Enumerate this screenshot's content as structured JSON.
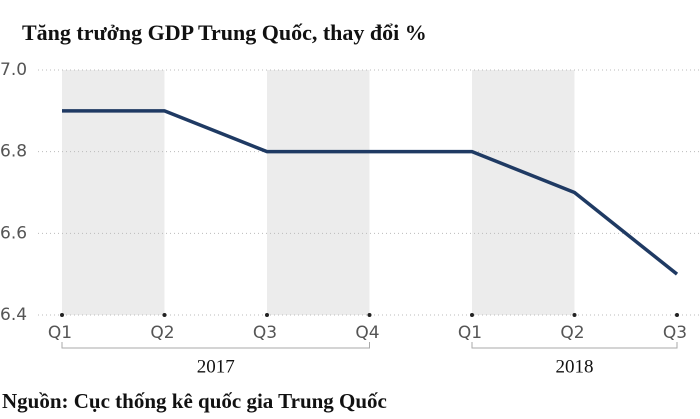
{
  "chart_data": {
    "type": "line",
    "title": "Tăng trưởng GDP Trung Quốc, thay đổi %",
    "source": "Nguồn: Cục thống kê quốc gia Trung Quốc",
    "categories": [
      "Q1",
      "Q2",
      "Q3",
      "Q4",
      "Q1",
      "Q2",
      "Q3"
    ],
    "x_groups": [
      {
        "label": "2017",
        "count": 4
      },
      {
        "label": "2018",
        "count": 3
      }
    ],
    "series": [
      {
        "color": "#1f3a63",
        "values": [
          6.9,
          6.9,
          6.8,
          6.8,
          6.8,
          6.7,
          6.5
        ]
      }
    ],
    "ylim": [
      6.4,
      7.0
    ],
    "yticks": [
      6.4,
      6.6,
      6.8,
      {
        "value": 7.0,
        "label": "7.0"
      }
    ],
    "grid": true
  }
}
